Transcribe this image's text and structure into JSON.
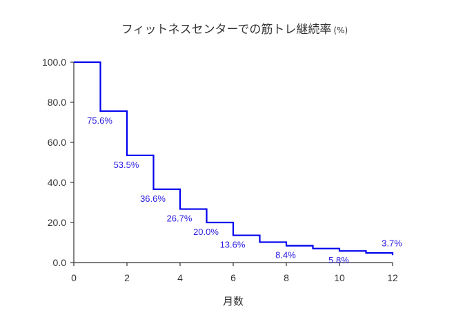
{
  "chart_data": {
    "type": "line",
    "step": true,
    "title": "フィットネスセンターでの筋トレ継続率",
    "title_unit": "(%)",
    "xlabel": "月数",
    "ylabel": "",
    "xlim": [
      0,
      12
    ],
    "ylim": [
      0,
      100
    ],
    "x_ticks": [
      "0",
      "2",
      "4",
      "6",
      "8",
      "10",
      "12"
    ],
    "y_ticks": [
      "0.0",
      "20.0",
      "40.0",
      "60.0",
      "80.0",
      "100.0"
    ],
    "grid": false,
    "line_color": "#0000ee",
    "label_color": "#2b1de0",
    "series": [
      {
        "x": [
          0,
          1,
          2,
          3,
          4,
          5,
          6,
          7,
          8,
          9,
          10,
          11,
          12
        ],
        "values": [
          100,
          75.6,
          53.5,
          36.6,
          26.7,
          20.0,
          13.6,
          10.2,
          8.4,
          7.0,
          5.8,
          4.8,
          3.7
        ]
      }
    ],
    "data_labels": [
      {
        "x": 1,
        "text": "75.6%"
      },
      {
        "x": 2,
        "text": "53.5%"
      },
      {
        "x": 3,
        "text": "36.6%"
      },
      {
        "x": 4,
        "text": "26.7%"
      },
      {
        "x": 5,
        "text": "20.0%"
      },
      {
        "x": 6,
        "text": "13.6%"
      },
      {
        "x": 8,
        "text": "8.4%"
      },
      {
        "x": 10,
        "text": "5.8%"
      },
      {
        "x": 12,
        "text": "3.7%"
      }
    ]
  }
}
